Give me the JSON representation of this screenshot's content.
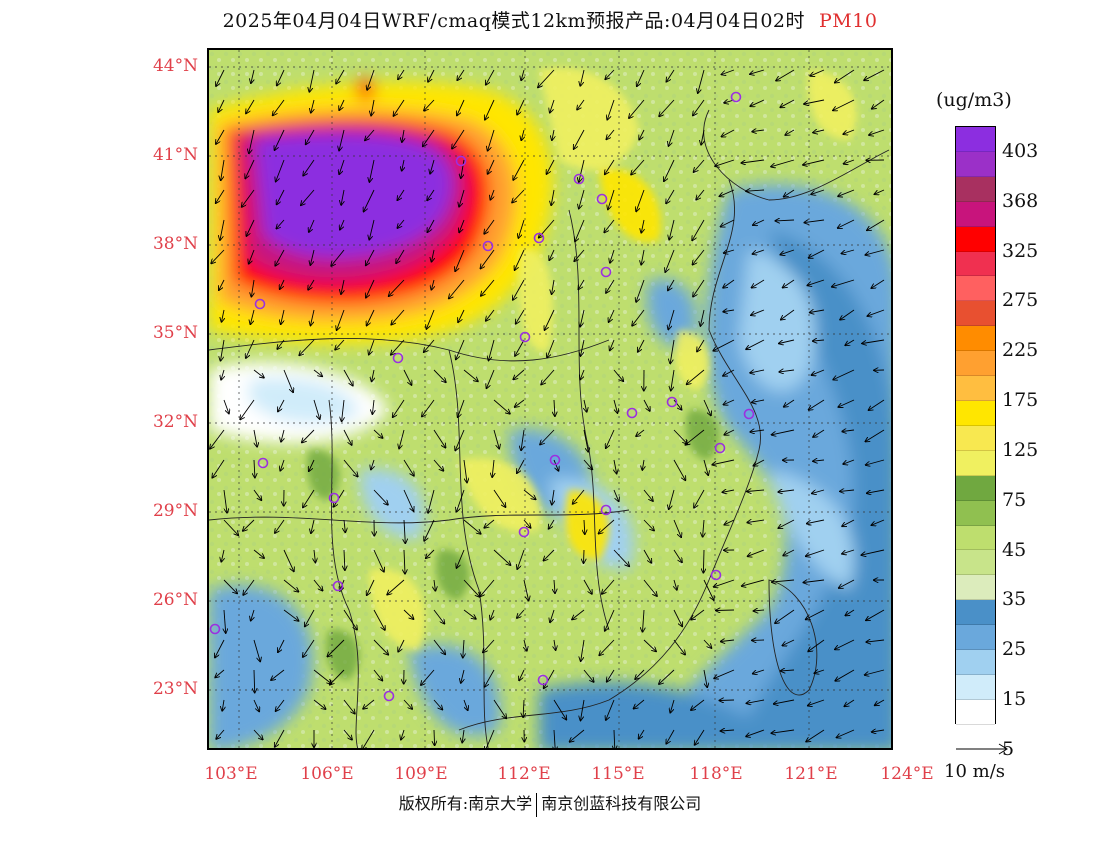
{
  "title": {
    "main": "2025年04月04日WRF/cmaq模式12km预报产品:04月04日02时",
    "pollutant": "PM10",
    "pollutant_color": "#e03030"
  },
  "axes": {
    "lat_labels": [
      "44°N",
      "41°N",
      "38°N",
      "35°N",
      "32°N",
      "29°N",
      "26°N",
      "23°N"
    ],
    "lon_labels": [
      "103°E",
      "106°E",
      "109°E",
      "112°E",
      "115°E",
      "118°E",
      "121°E",
      "124°E"
    ],
    "label_color": "#e0404a"
  },
  "legend": {
    "unit": "(ug/m3)",
    "colors": [
      "#8c2ee0",
      "#9b30c8",
      "#a83060",
      "#c8147c",
      "#ff0000",
      "#f03050",
      "#ff6060",
      "#e85030",
      "#ff8c00",
      "#ffa030",
      "#ffbe40",
      "#ffe600",
      "#f8e850",
      "#f0f060",
      "#70a840",
      "#90c050",
      "#bede6e",
      "#c8e48a",
      "#dcecbc",
      "#4a90c8",
      "#6aa8dc",
      "#a0d0f0",
      "#d0ecfa",
      "#ffffff"
    ],
    "labels": [
      "403",
      "368",
      "325",
      "275",
      "225",
      "175",
      "125",
      "75",
      "45",
      "35",
      "25",
      "15",
      "5"
    ]
  },
  "wind": {
    "label": "10 m/s"
  },
  "footer": {
    "left": "版权所有:南京大学",
    "right": "南京创蓝科技有限公司"
  }
}
